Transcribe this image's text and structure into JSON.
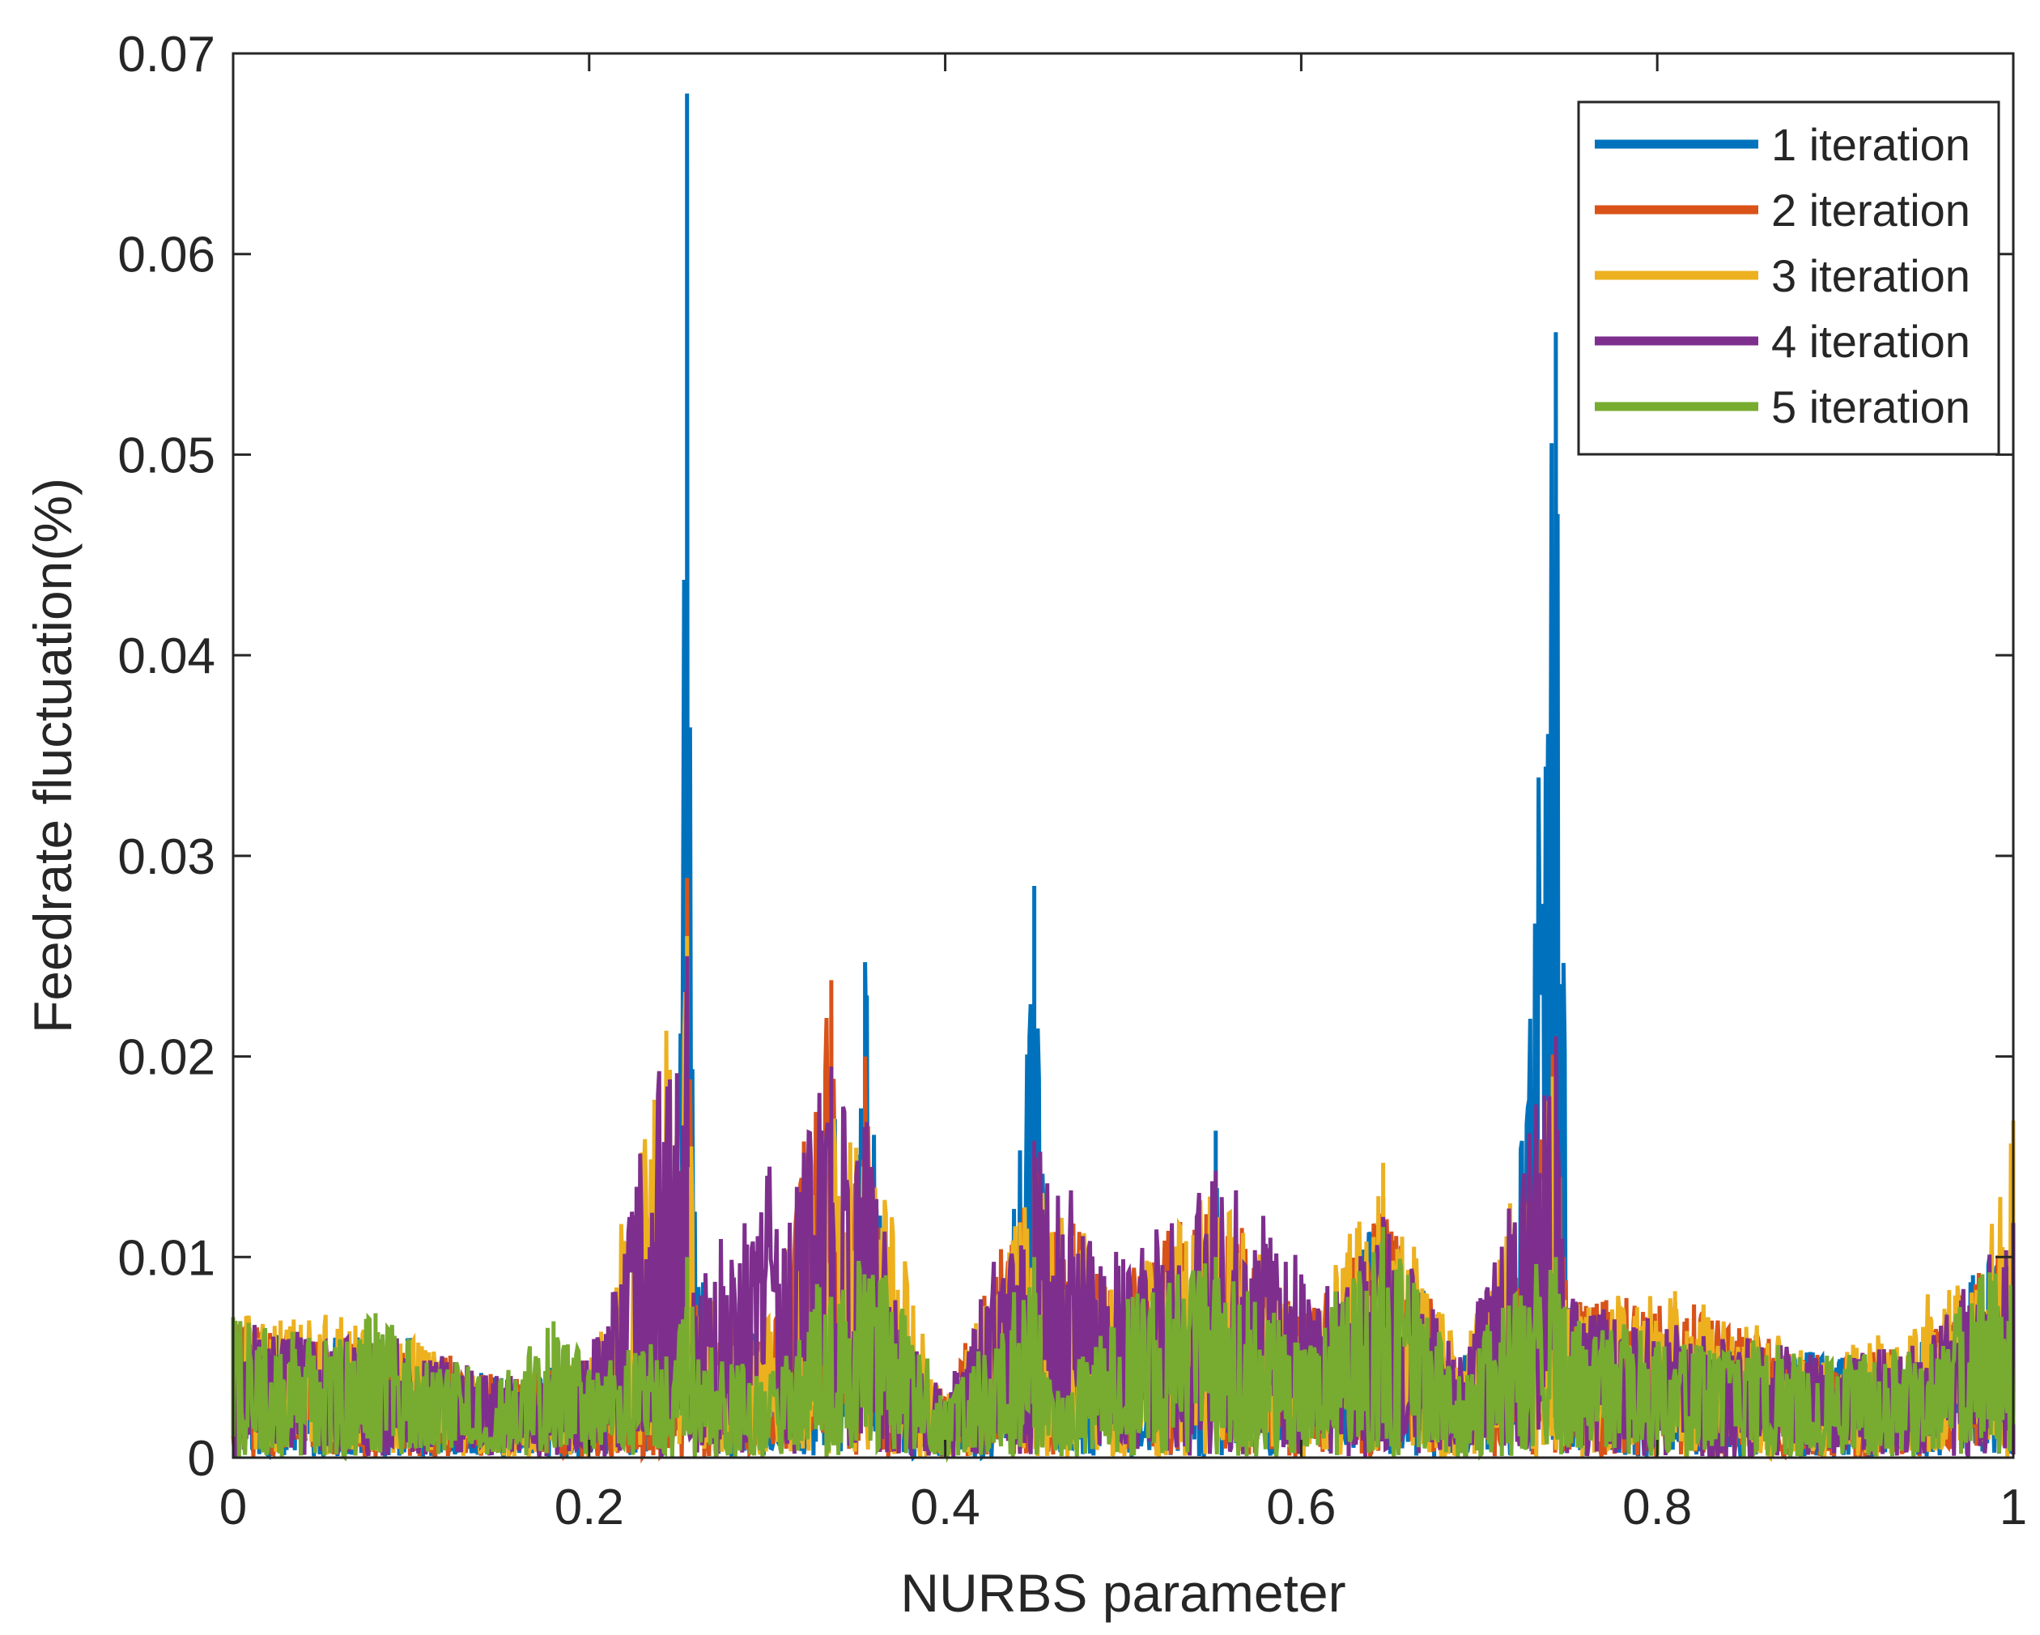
{
  "chart_data": {
    "type": "line",
    "title": "",
    "xlabel": "NURBS parameter",
    "ylabel": "Feedrate fluctuation(%)",
    "xlim": [
      0,
      1
    ],
    "ylim": [
      0,
      0.07
    ],
    "xticks": [
      0,
      0.2,
      0.4,
      0.6,
      0.8,
      1
    ],
    "xtick_labels": [
      "0",
      "0.2",
      "0.4",
      "0.6",
      "0.8",
      "1"
    ],
    "yticks": [
      0,
      0.01,
      0.02,
      0.03,
      0.04,
      0.05,
      0.06,
      0.07
    ],
    "ytick_labels": [
      "0",
      "0.01",
      "0.02",
      "0.03",
      "0.04",
      "0.05",
      "0.06",
      "0.07"
    ],
    "grid": false,
    "legend_position": "top-right",
    "series": [
      {
        "name": "1 iteration",
        "color": "#0072BD",
        "envelope": [
          [
            0,
            0.007
          ],
          [
            0.05,
            0.006
          ],
          [
            0.1,
            0.006
          ],
          [
            0.15,
            0.004
          ],
          [
            0.2,
            0.005
          ],
          [
            0.25,
            0.006
          ],
          [
            0.255,
            0.068
          ],
          [
            0.26,
            0.012
          ],
          [
            0.27,
            0.005
          ],
          [
            0.285,
            0.008
          ],
          [
            0.3,
            0.005
          ],
          [
            0.32,
            0.003
          ],
          [
            0.336,
            0.022
          ],
          [
            0.345,
            0.009
          ],
          [
            0.355,
            0.0247
          ],
          [
            0.365,
            0.01
          ],
          [
            0.38,
            0.005
          ],
          [
            0.4,
            0.003
          ],
          [
            0.43,
            0.003
          ],
          [
            0.45,
            0.0285
          ],
          [
            0.46,
            0.003
          ],
          [
            0.5,
            0.009
          ],
          [
            0.53,
            0.007
          ],
          [
            0.552,
            0.0163
          ],
          [
            0.56,
            0.009
          ],
          [
            0.6,
            0.007
          ],
          [
            0.62,
            0.008
          ],
          [
            0.646,
            0.013
          ],
          [
            0.66,
            0.01
          ],
          [
            0.69,
            0.005
          ],
          [
            0.72,
            0.009
          ],
          [
            0.743,
            0.0561
          ],
          [
            0.75,
            0.008
          ],
          [
            0.8,
            0.006
          ],
          [
            0.85,
            0.006
          ],
          [
            0.9,
            0.005
          ],
          [
            0.95,
            0.006
          ],
          [
            0.985,
            0.01
          ],
          [
            1,
            0.011
          ]
        ]
      },
      {
        "name": "2 iteration",
        "color": "#D95319",
        "envelope": [
          [
            0,
            0.007
          ],
          [
            0.05,
            0.006
          ],
          [
            0.1,
            0.006
          ],
          [
            0.15,
            0.004
          ],
          [
            0.2,
            0.005
          ],
          [
            0.25,
            0.006
          ],
          [
            0.255,
            0.0289
          ],
          [
            0.26,
            0.009
          ],
          [
            0.285,
            0.008
          ],
          [
            0.3,
            0.005
          ],
          [
            0.336,
            0.0238
          ],
          [
            0.345,
            0.009
          ],
          [
            0.355,
            0.02
          ],
          [
            0.365,
            0.009
          ],
          [
            0.4,
            0.003
          ],
          [
            0.45,
            0.015
          ],
          [
            0.5,
            0.009
          ],
          [
            0.552,
            0.014
          ],
          [
            0.6,
            0.007
          ],
          [
            0.646,
            0.013
          ],
          [
            0.69,
            0.005
          ],
          [
            0.72,
            0.009
          ],
          [
            0.743,
            0.021
          ],
          [
            0.75,
            0.008
          ],
          [
            0.81,
            0.008
          ],
          [
            0.9,
            0.005
          ],
          [
            0.95,
            0.006
          ],
          [
            0.985,
            0.01
          ],
          [
            1,
            0.012
          ]
        ]
      },
      {
        "name": "3 iteration",
        "color": "#EDB120",
        "envelope": [
          [
            0,
            0.007
          ],
          [
            0.035,
            0.0074
          ],
          [
            0.052,
            0.0074
          ],
          [
            0.1,
            0.006
          ],
          [
            0.15,
            0.004
          ],
          [
            0.2,
            0.005
          ],
          [
            0.255,
            0.026
          ],
          [
            0.26,
            0.009
          ],
          [
            0.285,
            0.007
          ],
          [
            0.295,
            0.0055
          ],
          [
            0.336,
            0.018
          ],
          [
            0.355,
            0.017
          ],
          [
            0.4,
            0.003
          ],
          [
            0.45,
            0.014
          ],
          [
            0.5,
            0.009
          ],
          [
            0.552,
            0.014
          ],
          [
            0.6,
            0.007
          ],
          [
            0.646,
            0.0147
          ],
          [
            0.69,
            0.005
          ],
          [
            0.743,
            0.02
          ],
          [
            0.75,
            0.008
          ],
          [
            0.81,
            0.0083
          ],
          [
            0.9,
            0.005
          ],
          [
            0.985,
            0.0105
          ],
          [
            1,
            0.0168
          ]
        ]
      },
      {
        "name": "4 iteration",
        "color": "#7E2F8E",
        "envelope": [
          [
            0,
            0.007
          ],
          [
            0.05,
            0.006
          ],
          [
            0.1,
            0.006
          ],
          [
            0.15,
            0.004
          ],
          [
            0.2,
            0.005
          ],
          [
            0.255,
            0.025
          ],
          [
            0.26,
            0.009
          ],
          [
            0.336,
            0.0195
          ],
          [
            0.355,
            0.0175
          ],
          [
            0.38,
            0.006
          ],
          [
            0.4,
            0.003
          ],
          [
            0.45,
            0.0158
          ],
          [
            0.5,
            0.0099
          ],
          [
            0.552,
            0.0143
          ],
          [
            0.62,
            0.0088
          ],
          [
            0.646,
            0.012
          ],
          [
            0.69,
            0.005
          ],
          [
            0.743,
            0.021
          ],
          [
            0.75,
            0.008
          ],
          [
            0.85,
            0.006
          ],
          [
            0.9,
            0.005
          ],
          [
            0.95,
            0.006
          ],
          [
            0.985,
            0.0102
          ],
          [
            1,
            0.0117
          ]
        ]
      },
      {
        "name": "5 iteration",
        "color": "#77AC30",
        "envelope": [
          [
            0,
            0.007
          ],
          [
            0.05,
            0.006
          ],
          [
            0.08,
            0.0072
          ],
          [
            0.1,
            0.006
          ],
          [
            0.15,
            0.004
          ],
          [
            0.18,
            0.0068
          ],
          [
            0.2,
            0.005
          ],
          [
            0.25,
            0.006
          ],
          [
            0.255,
            0.01
          ],
          [
            0.26,
            0.006
          ],
          [
            0.3,
            0.004
          ],
          [
            0.336,
            0.01
          ],
          [
            0.355,
            0.01
          ],
          [
            0.365,
            0.0098
          ],
          [
            0.4,
            0.003
          ],
          [
            0.45,
            0.01
          ],
          [
            0.46,
            0.003
          ],
          [
            0.5,
            0.008
          ],
          [
            0.552,
            0.01
          ],
          [
            0.6,
            0.006
          ],
          [
            0.646,
            0.0115
          ],
          [
            0.66,
            0.0095
          ],
          [
            0.69,
            0.004
          ],
          [
            0.72,
            0.0095
          ],
          [
            0.743,
            0.01
          ],
          [
            0.75,
            0.0078
          ],
          [
            0.8,
            0.006
          ],
          [
            0.85,
            0.006
          ],
          [
            0.9,
            0.005
          ],
          [
            0.95,
            0.0058
          ],
          [
            0.985,
            0.0095
          ],
          [
            1,
            0.0095
          ]
        ]
      }
    ]
  }
}
